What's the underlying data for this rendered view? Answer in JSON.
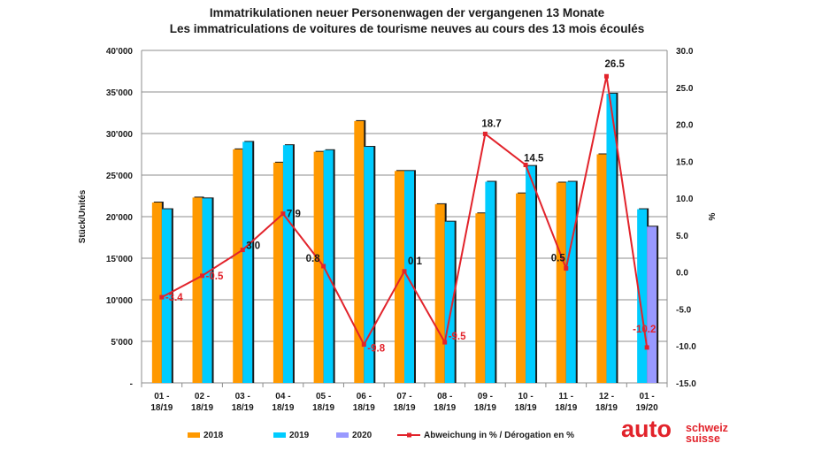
{
  "chart_data": {
    "type": "bar",
    "title": "Immatrikulationen neuer Personenwagen der vergangenen 13 Monate",
    "subtitle": "Les immatriculations de voitures de tourisme neuves au cours des 13 mois écoulés",
    "ylabel_left": "Stück/Unités",
    "ylabel_right": "%",
    "ylim_left": [
      0,
      40000
    ],
    "ylim_right": [
      -15,
      30
    ],
    "yticks_left": [
      "-",
      "5'000",
      "10'000",
      "15'000",
      "20'000",
      "25'000",
      "30'000",
      "35'000",
      "40'000"
    ],
    "yticks_right": [
      "-15.0",
      "-10.0",
      "-5.0",
      "0.0",
      "5.0",
      "10.0",
      "15.0",
      "20.0",
      "25.0",
      "30.0"
    ],
    "categories": [
      "01 -\n18/19",
      "02 -\n18/19",
      "03 -\n18/19",
      "04 -\n18/19",
      "05 -\n18/19",
      "06 -\n18/19",
      "07 -\n18/19",
      "08 -\n18/19",
      "09 -\n18/19",
      "10 -\n18/19",
      "11 -\n18/19",
      "12 -\n18/19",
      "01 -\n19/20"
    ],
    "series": [
      {
        "name": "2018",
        "color": "#ff9900",
        "values": [
          21700,
          22300,
          28100,
          26500,
          27800,
          31500,
          25500,
          21500,
          20400,
          22800,
          24100,
          27500,
          null
        ]
      },
      {
        "name": "2019",
        "color": "#00ccff",
        "values": [
          20900,
          22200,
          29000,
          28600,
          28000,
          28400,
          25500,
          19400,
          24200,
          26100,
          24200,
          34800,
          20900
        ]
      },
      {
        "name": "2020",
        "color": "#9999ff",
        "values": [
          null,
          null,
          null,
          null,
          null,
          null,
          null,
          null,
          null,
          null,
          null,
          null,
          18800
        ]
      },
      {
        "name": "Abweichung in % / Dérogation en %",
        "axis": "right",
        "type": "line",
        "color": "#e2232b",
        "values": [
          -3.4,
          -0.5,
          3.0,
          7.9,
          0.8,
          -9.8,
          0.1,
          -9.5,
          18.7,
          14.5,
          0.5,
          26.5,
          -10.2
        ],
        "labels": [
          "-3.4",
          "-0.5",
          "3.0",
          "7.9",
          "0.8",
          "-9.8",
          "0.1",
          "-9.5",
          "18.7",
          "14.5",
          "0.5",
          "26.5",
          "-10.2"
        ]
      }
    ],
    "grid": "horizontal",
    "legend_position": "bottom"
  },
  "logo": {
    "main": "auto",
    "line1": "schweiz",
    "line2": "suisse"
  }
}
